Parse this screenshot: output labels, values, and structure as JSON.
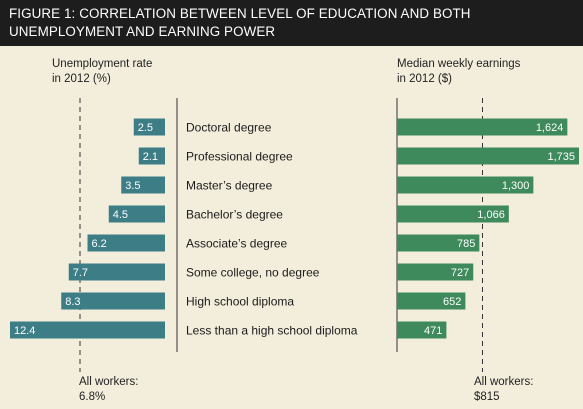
{
  "title_line1": "FIGURE 1: CORRELATION BETWEEN LEVEL OF EDUCATION AND BOTH",
  "title_line2": "UNEMPLOYMENT AND EARNING POWER",
  "colors": {
    "unemployment": "#3d7d86",
    "earnings": "#3f8a5c",
    "background": "#f3eedc",
    "header": "#1d1d1d"
  },
  "chart_data": [
    {
      "type": "bar",
      "orientation": "horizontal",
      "label_line1": "Unemployment rate",
      "label_line2": "in 2012 (%)",
      "categories": [
        "Doctoral degree",
        "Professional degree",
        "Master’s degree",
        "Bachelor’s degree",
        "Associate’s degree",
        "Some college, no degree",
        "High school diploma",
        "Less than a high school diploma"
      ],
      "values": [
        2.5,
        2.1,
        3.5,
        4.5,
        6.2,
        7.7,
        8.3,
        12.4
      ],
      "value_labels": [
        "2.5",
        "2.1",
        "3.5",
        "4.5",
        "6.2",
        "7.7",
        "8.3",
        "12.4"
      ],
      "reference_value": 6.8,
      "reference_line1": "All workers:",
      "reference_line2": "6.8%",
      "grid": false
    },
    {
      "type": "bar",
      "orientation": "horizontal",
      "label_line1": "Median weekly earnings",
      "label_line2": "in 2012 ($)",
      "categories": [
        "Doctoral degree",
        "Professional degree",
        "Master’s degree",
        "Bachelor’s degree",
        "Associate’s degree",
        "Some college, no degree",
        "High school diploma",
        "Less than a high school diploma"
      ],
      "values": [
        1624,
        1735,
        1300,
        1066,
        785,
        727,
        652,
        471
      ],
      "value_labels": [
        "1,624",
        "1,735",
        "1,300",
        "1,066",
        "785",
        "727",
        "652",
        "471"
      ],
      "reference_value": 815,
      "reference_line1": "All workers:",
      "reference_line2": "$815",
      "grid": false
    }
  ]
}
